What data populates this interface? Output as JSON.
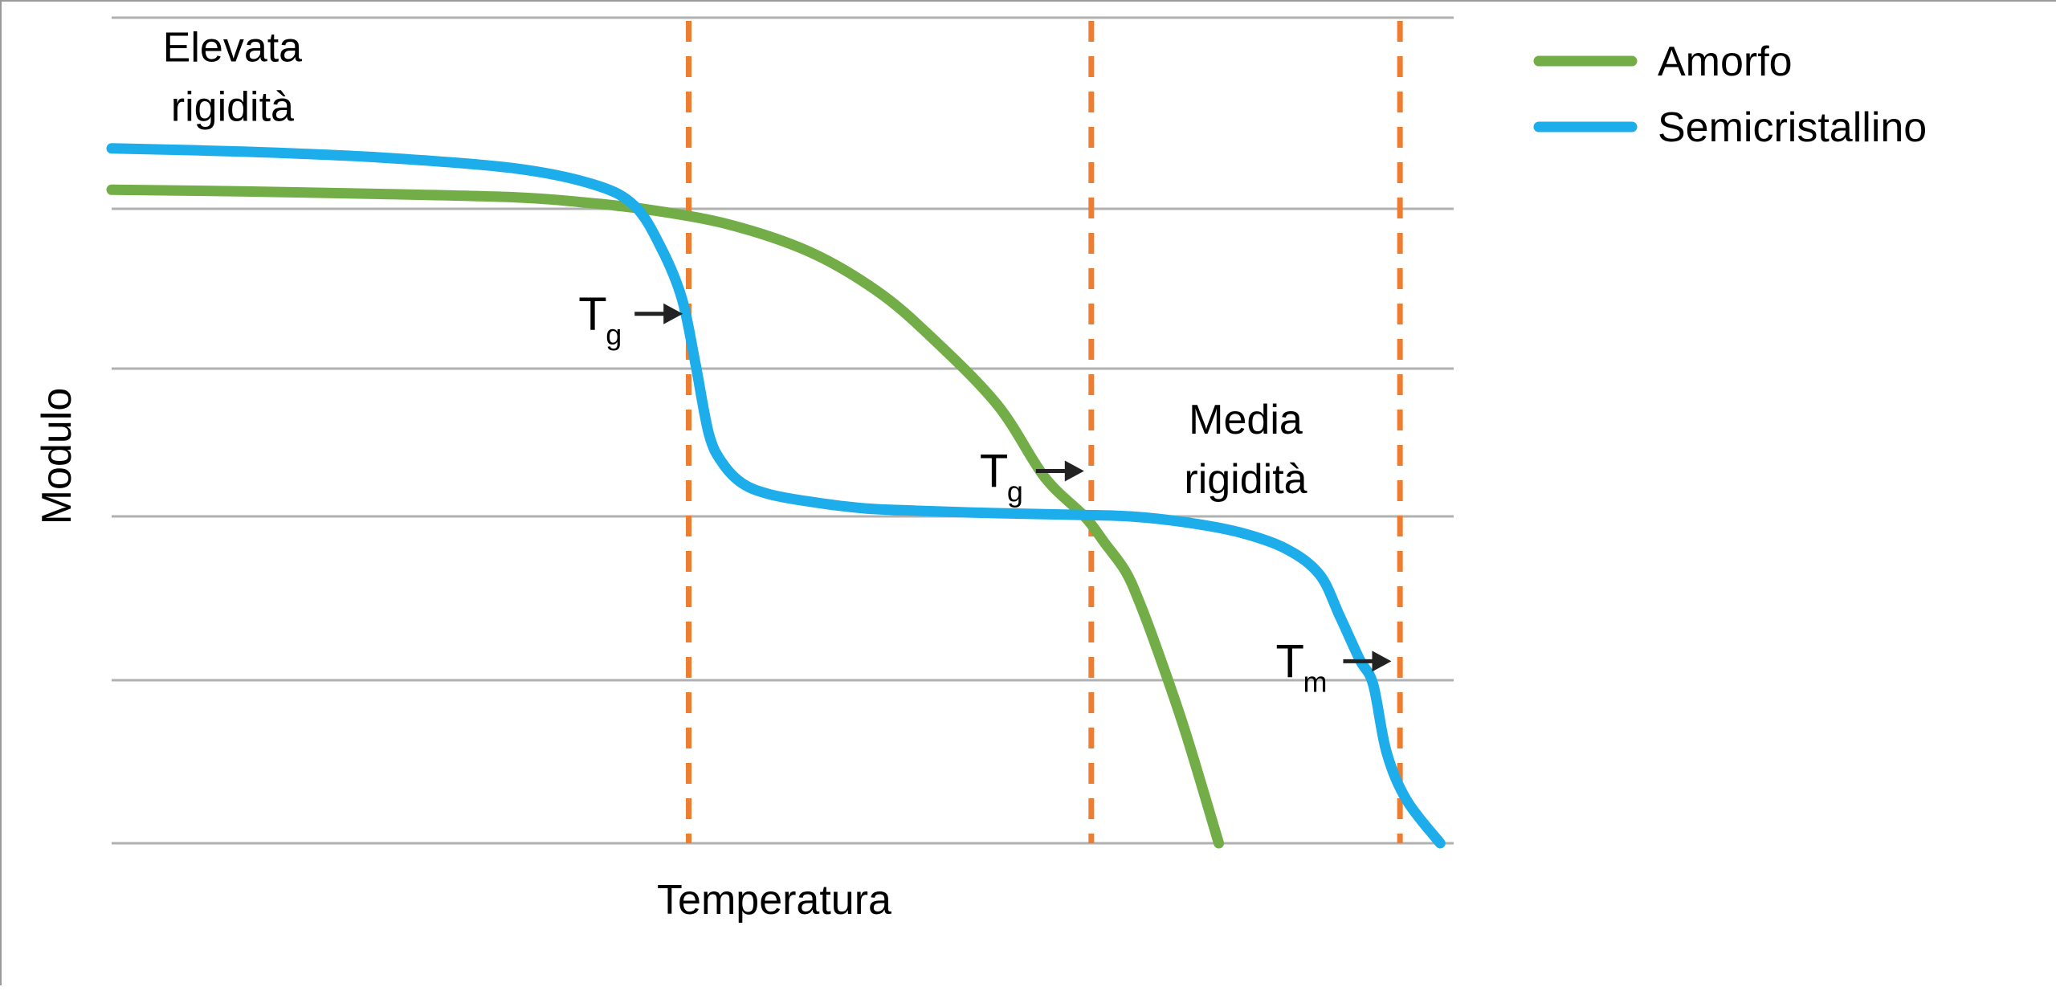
{
  "chart_data": {
    "type": "line",
    "xlabel": "Temperatura",
    "ylabel": "Modulo",
    "xlim": [
      0,
      100
    ],
    "ylim": [
      0,
      100
    ],
    "grid": true,
    "legend_position": "top-right",
    "series": [
      {
        "name": "Amorfo",
        "color": "#72ad47",
        "x": [
          0,
          10,
          20,
          30,
          35,
          40,
          46,
          52,
          57,
          61,
          66,
          69.5,
          72.5,
          74,
          75.5,
          76.5,
          78,
          80,
          82.5
        ],
        "y": [
          79,
          78.8,
          78.5,
          78.1,
          77.5,
          76.6,
          74.8,
          71.5,
          66.8,
          61.3,
          53,
          44.3,
          39.5,
          36.3,
          33,
          29.5,
          23,
          13.5,
          0
        ]
      },
      {
        "name": "Semicristallino",
        "color": "#1cadea",
        "x": [
          0,
          10,
          20,
          30,
          36,
          39,
          41,
          42.5,
          43.5,
          44.5,
          45.5,
          47,
          49,
          52,
          56,
          60,
          66,
          72,
          76,
          80,
          84,
          87.5,
          90,
          91.5,
          93,
          94,
          95,
          96.5,
          99
        ],
        "y": [
          84,
          83.6,
          82.9,
          81.6,
          79.6,
          77,
          71.8,
          65.8,
          58,
          49.5,
          46,
          43.5,
          42.2,
          41.3,
          40.5,
          40.2,
          39.9,
          39.7,
          39.5,
          38.8,
          37.6,
          35.6,
          32.5,
          27.5,
          22.2,
          19.2,
          11,
          5.2,
          0
        ]
      }
    ],
    "reference_lines": [
      {
        "x": 43,
        "style": "dashed",
        "color": "#ed7d31"
      },
      {
        "x": 73,
        "style": "dashed",
        "color": "#ed7d31"
      },
      {
        "x": 96,
        "style": "dashed",
        "color": "#ed7d31"
      }
    ],
    "annotations": [
      {
        "text": "Elevata",
        "text2": "rigidità",
        "at": [
          9,
          94.5
        ]
      },
      {
        "text": "Media",
        "text2": "rigidità",
        "at": [
          84.5,
          49.5
        ]
      },
      {
        "symbol": "T",
        "subscript": "g",
        "points_to": [
          42.8,
          64
        ],
        "color": "#222222"
      },
      {
        "symbol": "T",
        "subscript": "g",
        "points_to": [
          72.7,
          45
        ],
        "color": "#222222"
      },
      {
        "symbol": "T",
        "subscript": "m",
        "points_to": [
          95.6,
          22
        ],
        "color": "#222222"
      }
    ]
  }
}
